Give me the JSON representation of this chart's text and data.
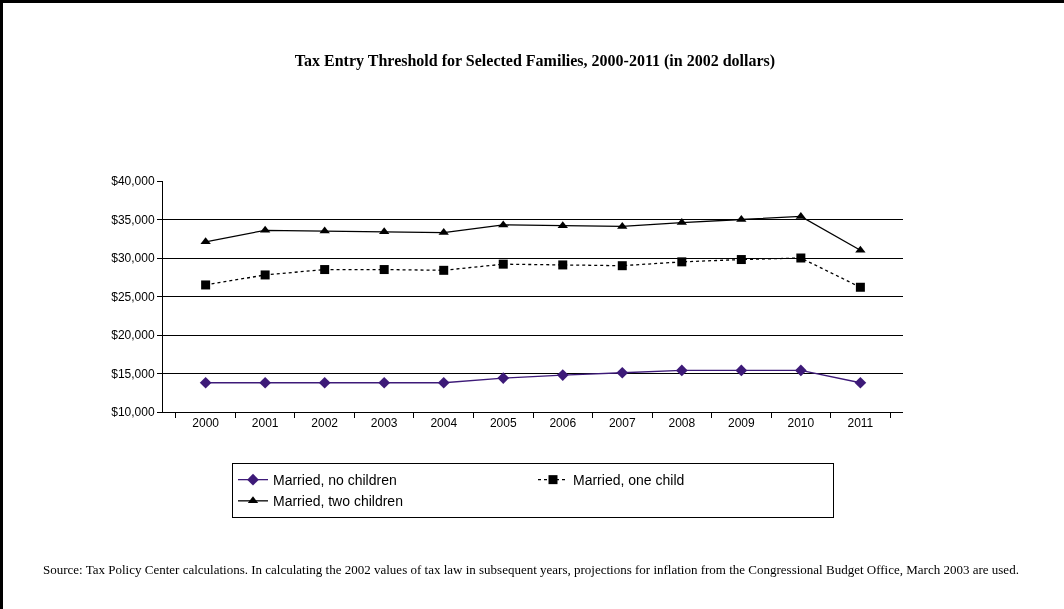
{
  "chart_data": {
    "type": "line",
    "title": "Tax Entry Threshold for Selected Families, 2000-2011 (in 2002 dollars)",
    "categories": [
      "2000",
      "2001",
      "2002",
      "2003",
      "2004",
      "2005",
      "2006",
      "2007",
      "2008",
      "2009",
      "2010",
      "2011"
    ],
    "series": [
      {
        "name": "Married, no children",
        "color": "#3d1a78",
        "marker": "diamond",
        "line_style": "solid",
        "values": [
          13800,
          13800,
          13800,
          13800,
          13800,
          14400,
          14800,
          15100,
          15400,
          15400,
          15400,
          13800
        ]
      },
      {
        "name": "Married, one child",
        "color": "#000000",
        "marker": "square",
        "line_style": "dotted",
        "values": [
          26500,
          27800,
          28500,
          28500,
          28400,
          29200,
          29100,
          29000,
          29500,
          29800,
          30000,
          26200
        ]
      },
      {
        "name": "Married, two children",
        "color": "#000000",
        "marker": "triangle",
        "line_style": "solid",
        "values": [
          32100,
          33600,
          33500,
          33400,
          33300,
          34300,
          34200,
          34100,
          34600,
          35000,
          35400,
          31000
        ]
      }
    ],
    "ylim": [
      10000,
      40000
    ],
    "yticks": [
      {
        "value": 10000,
        "label": "$10,000"
      },
      {
        "value": 15000,
        "label": "$15,000"
      },
      {
        "value": 20000,
        "label": "$20,000"
      },
      {
        "value": 25000,
        "label": "$25,000"
      },
      {
        "value": 30000,
        "label": "$30,000"
      },
      {
        "value": 35000,
        "label": "$35,000"
      },
      {
        "value": 40000,
        "label": "$40,000"
      }
    ],
    "grid": "y",
    "legend": "bottom",
    "annotations": [
      "Source: Tax Policy Center calculations. In calculating the 2002 values of tax law in subsequent years, projections for inflation from the Congressional Budget Office, March 2003 are used."
    ]
  }
}
